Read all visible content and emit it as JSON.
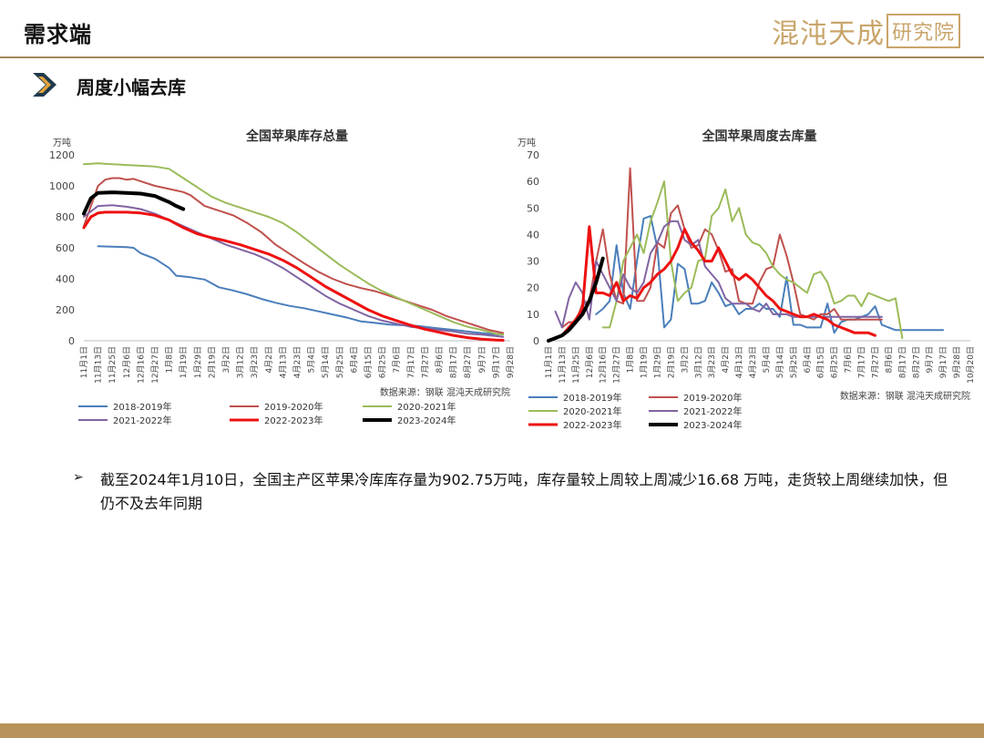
{
  "header": {
    "title": "需求端",
    "brand_main": "混沌天成",
    "brand_sub": "研究院"
  },
  "section": {
    "title": "周度小幅去库"
  },
  "note": {
    "bullet": "➢",
    "text": "截至2024年1月10日，全国主产区苹果冷库库存量为902.75万吨，库存量较上周较上周减少16.68 万吨，走货较上周继续加快，但仍不及去年同期"
  },
  "colors": {
    "header_rule": "#a58655",
    "brand": "#c9a56b",
    "footer": "#b8935a",
    "arrow_dark": "#1f3a4d",
    "arrow_light": "#e0a23c"
  },
  "chart_data": [
    {
      "type": "line",
      "title": "全国苹果库存总量",
      "ylabel": "万吨",
      "source": "数据来源：钢联  混沌天成研究院",
      "ylim": [
        0,
        1200
      ],
      "yticks": [
        0,
        200,
        400,
        600,
        800,
        1000,
        1200
      ],
      "xticks": [
        "11月1日",
        "11月13日",
        "11月25日",
        "12月6日",
        "12月16日",
        "12月27日",
        "1月8日",
        "1月19日",
        "1月29日",
        "2月19日",
        "3月2日",
        "3月12日",
        "3月23日",
        "4月2日",
        "4月13日",
        "4月23日",
        "5月4日",
        "5月14日",
        "5月25日",
        "6月4日",
        "6月15日",
        "6月25日",
        "7月6日",
        "7月17日",
        "7月27日",
        "8月6日",
        "8月17日",
        "8月27日",
        "9月7日",
        "9月17日",
        "9月28日"
      ],
      "legend_ncol": 3,
      "series": [
        {
          "name": "2018-2019年",
          "color": "#4a7ebb",
          "width": 2,
          "x": [
            2,
            4,
            6,
            7,
            8,
            10,
            12,
            13,
            15,
            17,
            19,
            21,
            23,
            25,
            27,
            29,
            31,
            33,
            35,
            37,
            39,
            41,
            43,
            45,
            47,
            49,
            51,
            53,
            55,
            57,
            59
          ],
          "values": [
            610,
            607,
            605,
            600,
            565,
            530,
            470,
            420,
            410,
            395,
            345,
            325,
            300,
            270,
            245,
            225,
            210,
            190,
            170,
            150,
            125,
            115,
            105,
            100,
            95,
            85,
            75,
            65,
            55,
            45,
            40
          ]
        },
        {
          "name": "2019-2020年",
          "color": "#c0504d",
          "width": 2,
          "x": [
            0,
            2,
            3,
            4,
            5,
            6,
            7,
            8,
            10,
            12,
            14,
            15,
            17,
            19,
            21,
            23,
            25,
            27,
            29,
            31,
            33,
            35,
            37,
            39,
            41,
            43,
            45,
            47,
            49,
            51,
            53,
            55,
            57,
            59
          ],
          "values": [
            740,
            1000,
            1040,
            1050,
            1050,
            1040,
            1045,
            1030,
            1000,
            980,
            960,
            940,
            870,
            840,
            810,
            760,
            700,
            620,
            560,
            500,
            445,
            400,
            365,
            340,
            320,
            290,
            260,
            230,
            200,
            160,
            130,
            100,
            70,
            50
          ]
        },
        {
          "name": "2020-2021年",
          "color": "#9bbb59",
          "width": 2,
          "x": [
            0,
            2,
            4,
            6,
            8,
            10,
            12,
            14,
            16,
            18,
            20,
            22,
            24,
            26,
            28,
            30,
            32,
            34,
            36,
            38,
            40,
            42,
            44,
            46,
            48,
            50,
            52,
            54,
            56,
            58,
            59
          ],
          "values": [
            1140,
            1145,
            1140,
            1135,
            1130,
            1125,
            1110,
            1050,
            990,
            930,
            890,
            860,
            830,
            800,
            760,
            700,
            630,
            560,
            490,
            430,
            370,
            320,
            280,
            240,
            200,
            160,
            120,
            90,
            70,
            45,
            40
          ]
        },
        {
          "name": "2021-2022年",
          "color": "#8064a2",
          "width": 2,
          "x": [
            0,
            2,
            4,
            6,
            8,
            10,
            12,
            14,
            16,
            18,
            20,
            22,
            24,
            26,
            28,
            30,
            32,
            34,
            36,
            38,
            40,
            42,
            44,
            46,
            48,
            50,
            52,
            54,
            56,
            58,
            59
          ],
          "values": [
            800,
            870,
            875,
            865,
            850,
            820,
            780,
            740,
            700,
            660,
            620,
            590,
            560,
            520,
            470,
            410,
            350,
            290,
            240,
            200,
            160,
            130,
            110,
            90,
            80,
            70,
            60,
            45,
            40,
            30,
            25
          ]
        },
        {
          "name": "2022-2023年",
          "color": "#ee1111",
          "width": 3,
          "x": [
            0,
            1,
            2,
            3,
            4,
            6,
            8,
            10,
            12,
            14,
            16,
            18,
            20,
            22,
            24,
            26,
            28,
            30,
            32,
            34,
            36,
            38,
            40,
            42,
            44,
            46,
            48,
            50,
            52,
            54,
            56,
            58,
            59
          ],
          "values": [
            730,
            800,
            825,
            830,
            830,
            830,
            825,
            810,
            780,
            730,
            690,
            665,
            645,
            620,
            590,
            560,
            520,
            470,
            410,
            350,
            300,
            250,
            200,
            160,
            130,
            100,
            75,
            55,
            35,
            20,
            10,
            5,
            3
          ]
        },
        {
          "name": "2023-2024年",
          "color": "#000000",
          "width": 4,
          "x": [
            0,
            1,
            2,
            4,
            6,
            8,
            10,
            11,
            12,
            13,
            14
          ],
          "values": [
            820,
            920,
            955,
            958,
            955,
            950,
            935,
            915,
            895,
            870,
            850
          ]
        }
      ]
    },
    {
      "type": "line",
      "title": "全国苹果周度去库量",
      "ylabel": "万吨",
      "source": "数据来源：钢联  混沌天成研究院",
      "ylim": [
        0,
        70
      ],
      "yticks": [
        0,
        10,
        20,
        30,
        40,
        50,
        60,
        70
      ],
      "xticks": [
        "11月1日",
        "11月13日",
        "11月25日",
        "12月6日",
        "12月16日",
        "12月27日",
        "1月8日",
        "1月19日",
        "1月29日",
        "2月19日",
        "3月2日",
        "3月12日",
        "3月23日",
        "4月2日",
        "4月13日",
        "4月23日",
        "5月4日",
        "5月14日",
        "5月25日",
        "6月4日",
        "6月15日",
        "6月25日",
        "7月6日",
        "7月17日",
        "7月27日",
        "8月6日",
        "8月17日",
        "8月27日",
        "9月7日",
        "9月17日",
        "9月28日",
        "10月20日"
      ],
      "legend_ncol": 2,
      "series": [
        {
          "name": "2018-2019年",
          "color": "#4a7ebb",
          "width": 2,
          "x": [
            7,
            8,
            9,
            10,
            11,
            12,
            13,
            14,
            15,
            16,
            17,
            18,
            19,
            20,
            21,
            22,
            23,
            24,
            25,
            26,
            27,
            28,
            29,
            30,
            31,
            32,
            33,
            34,
            35,
            36,
            37,
            38,
            39,
            40,
            41,
            42,
            43,
            44,
            45,
            46,
            47,
            48,
            49,
            50,
            51,
            52,
            53,
            54,
            55,
            56,
            57,
            58
          ],
          "values": [
            10,
            12,
            15,
            36,
            18,
            12,
            30,
            46,
            47,
            35,
            5,
            8,
            29,
            27,
            14,
            14,
            15,
            22,
            18,
            13,
            14,
            10,
            12,
            12,
            14,
            12,
            12,
            9,
            24,
            6,
            6,
            5,
            5,
            5,
            14,
            3,
            7,
            8,
            8,
            9,
            10,
            13,
            6,
            5,
            4,
            4,
            4,
            4,
            4,
            4,
            4,
            4
          ]
        },
        {
          "name": "2019-2020年",
          "color": "#c0504d",
          "width": 2,
          "x": [
            2,
            3,
            4,
            5,
            6,
            7,
            8,
            9,
            10,
            11,
            12,
            13,
            14,
            15,
            16,
            17,
            18,
            19,
            20,
            21,
            22,
            23,
            24,
            25,
            26,
            27,
            28,
            29,
            30,
            31,
            32,
            33,
            34,
            35,
            36,
            37,
            38,
            39,
            40,
            41,
            42,
            43,
            44,
            45,
            46,
            47,
            48,
            49
          ],
          "values": [
            5,
            7,
            7,
            14,
            15,
            30,
            42,
            25,
            15,
            14,
            65,
            15,
            15,
            20,
            37,
            35,
            48,
            51,
            42,
            35,
            36,
            42,
            40,
            34,
            26,
            27,
            15,
            14,
            14,
            22,
            27,
            28,
            40,
            32,
            22,
            10,
            9,
            8,
            10,
            10,
            12,
            8,
            8,
            8,
            8,
            8,
            8,
            8
          ]
        },
        {
          "name": "2020-2021年",
          "color": "#9bbb59",
          "width": 2,
          "x": [
            8,
            9,
            10,
            11,
            12,
            13,
            14,
            15,
            16,
            17,
            18,
            19,
            20,
            21,
            22,
            23,
            24,
            25,
            26,
            27,
            28,
            29,
            30,
            31,
            32,
            33,
            34,
            35,
            36,
            37,
            38,
            39,
            40,
            41,
            42,
            43,
            44,
            45,
            46,
            47,
            48,
            49,
            50,
            51,
            52
          ],
          "values": [
            5,
            5,
            15,
            30,
            35,
            40,
            33,
            45,
            52,
            60,
            30,
            15,
            18,
            20,
            30,
            31,
            47,
            50,
            57,
            45,
            50,
            40,
            37,
            36,
            33,
            28,
            25,
            23,
            22,
            20,
            18,
            25,
            26,
            22,
            14,
            15,
            17,
            17,
            13,
            18,
            17,
            16,
            15,
            16,
            1
          ]
        },
        {
          "name": "2021-2022年",
          "color": "#8064a2",
          "width": 2,
          "x": [
            1,
            2,
            3,
            4,
            5,
            6,
            7,
            8,
            9,
            10,
            11,
            12,
            13,
            14,
            15,
            16,
            17,
            18,
            19,
            20,
            21,
            22,
            23,
            24,
            25,
            26,
            27,
            28,
            29,
            30,
            31,
            32,
            33,
            34,
            35,
            36,
            37,
            38,
            39,
            40,
            41,
            42,
            43,
            44,
            45,
            46,
            47,
            48,
            49
          ],
          "values": [
            11,
            5,
            16,
            22,
            18,
            8,
            30,
            25,
            20,
            15,
            25,
            20,
            18,
            22,
            33,
            37,
            43,
            45,
            45,
            38,
            36,
            38,
            28,
            25,
            22,
            16,
            14,
            14,
            14,
            12,
            11,
            14,
            10,
            10,
            10,
            9,
            9,
            9,
            9,
            9,
            9,
            9,
            9,
            9,
            9,
            9,
            9,
            9,
            9
          ]
        },
        {
          "name": "2022-2023年",
          "color": "#ee1111",
          "width": 3,
          "x": [
            0,
            1,
            2,
            3,
            4,
            5,
            6,
            7,
            8,
            9,
            10,
            11,
            12,
            13,
            14,
            15,
            16,
            17,
            18,
            19,
            20,
            21,
            22,
            23,
            24,
            25,
            26,
            27,
            28,
            29,
            30,
            31,
            32,
            33,
            34,
            35,
            36,
            37,
            38,
            39,
            40,
            41,
            42,
            43,
            44,
            45,
            46,
            47,
            48
          ],
          "values": [
            0,
            1,
            2,
            5,
            8,
            12,
            43,
            18,
            18,
            17,
            22,
            15,
            17,
            16,
            20,
            22,
            25,
            27,
            30,
            35,
            42,
            37,
            34,
            30,
            30,
            35,
            30,
            25,
            23,
            25,
            23,
            20,
            17,
            15,
            12,
            11,
            10,
            9,
            9,
            10,
            9,
            8,
            6,
            5,
            4,
            3,
            3,
            3,
            2
          ]
        },
        {
          "name": "2023-2024年",
          "color": "#000000",
          "width": 4,
          "x": [
            0,
            1,
            2,
            3,
            4,
            5,
            6,
            7,
            8
          ],
          "values": [
            0,
            1,
            2,
            4,
            7,
            10,
            15,
            22,
            31
          ]
        }
      ]
    }
  ]
}
